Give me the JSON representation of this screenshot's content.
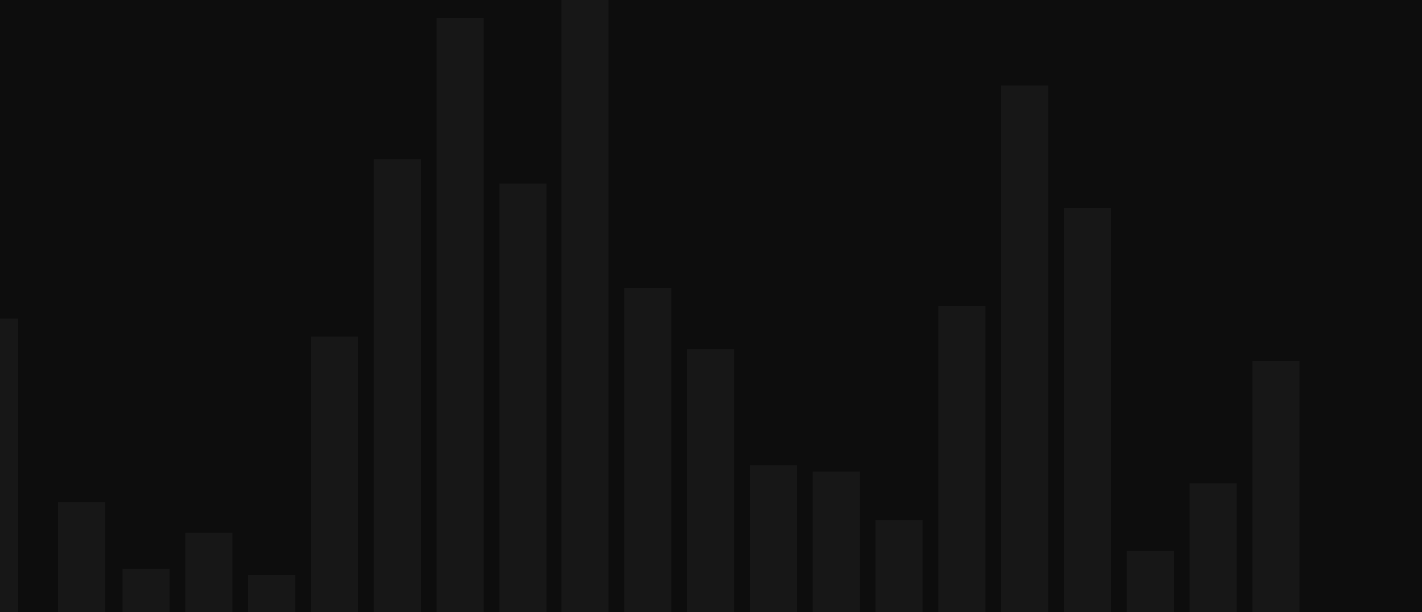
{
  "background_color": "#0d0d0d",
  "bar_color": "#171717",
  "visual_levels": [
    0.48,
    0.18,
    0.07,
    0.13,
    0.06,
    0.45,
    0.74,
    0.97,
    0.7,
    1.0,
    0.53,
    0.43,
    0.24,
    0.23,
    0.15,
    0.5,
    0.86,
    0.66,
    0.1,
    0.21,
    0.41
  ]
}
